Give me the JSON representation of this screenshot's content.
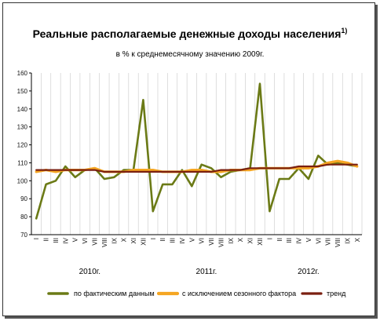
{
  "chart_data": {
    "type": "line",
    "title": "Реальные располагаемые денежные доходы населения",
    "title_superscript": "1)",
    "subtitle": "в % к среднемесячному значению 2009г.",
    "ylim": [
      70,
      160
    ],
    "yticks": [
      70,
      80,
      90,
      100,
      110,
      120,
      130,
      140,
      150,
      160
    ],
    "grid": "vertical",
    "legend_position": "bottom",
    "x": [
      "I",
      "II",
      "III",
      "IV",
      "V",
      "VI",
      "VII",
      "VIII",
      "IX",
      "X",
      "XI",
      "XII",
      "I",
      "II",
      "III",
      "IV",
      "V",
      "VI",
      "VII",
      "VIII",
      "IX",
      "X",
      "XI",
      "XII",
      "I",
      "II",
      "III",
      "IV",
      "V",
      "VI",
      "VII",
      "VIII",
      "IX",
      "X"
    ],
    "years": [
      {
        "label": "2010г.",
        "center_index": 5.5
      },
      {
        "label": "2011г.",
        "center_index": 17.5
      },
      {
        "label": "2012г.",
        "center_index": 28.0
      }
    ],
    "series": [
      {
        "name": "по фактическим данным",
        "color": "#6b7a16",
        "values": [
          79,
          98,
          100,
          108,
          102,
          106,
          107,
          101,
          102,
          106,
          106,
          145,
          83,
          98,
          98,
          106,
          97,
          109,
          107,
          102,
          105,
          106,
          107,
          154,
          83,
          101,
          101,
          107,
          101,
          114,
          109,
          110,
          109,
          108
        ]
      },
      {
        "name": "с исключением сезонного фактора",
        "color": "#f5a623",
        "values": [
          105,
          106,
          105,
          106,
          106,
          106,
          107,
          105,
          105,
          105,
          106,
          106,
          106,
          105,
          105,
          105,
          106,
          106,
          105,
          105,
          106,
          106,
          106,
          107,
          107,
          107,
          107,
          107,
          107,
          108,
          110,
          111,
          110,
          108
        ]
      },
      {
        "name": "тренд",
        "color": "#7a1f10",
        "values": [
          106,
          106,
          106,
          106,
          106,
          106,
          106,
          105,
          105,
          105,
          105,
          105,
          105,
          105,
          105,
          105,
          105,
          105,
          105,
          106,
          106,
          106,
          107,
          107,
          107,
          107,
          107,
          108,
          108,
          108,
          109,
          109,
          109,
          109
        ]
      }
    ]
  }
}
